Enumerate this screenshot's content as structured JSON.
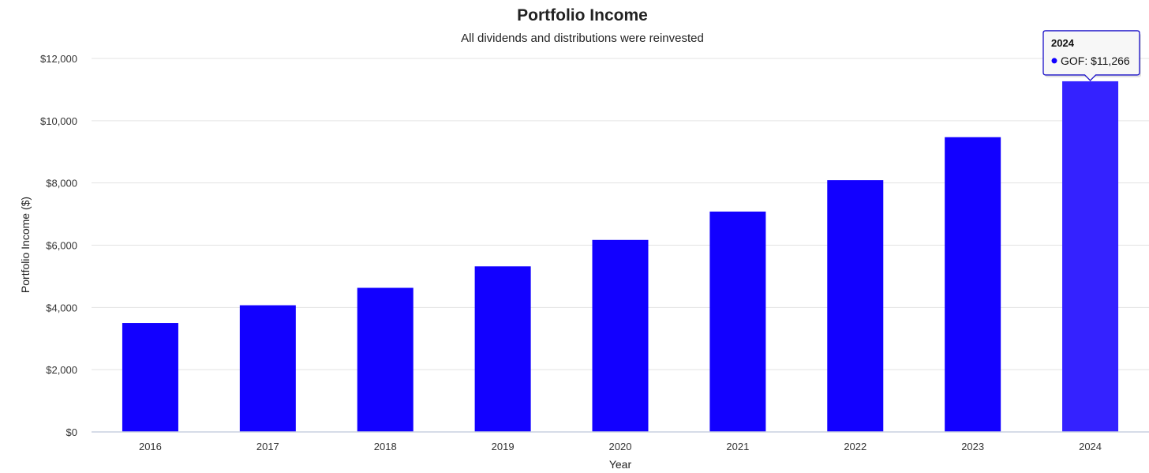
{
  "chart_data": {
    "type": "bar",
    "title": "Portfolio Income",
    "subtitle": "All dividends and distributions were reinvested",
    "xlabel": "Year",
    "ylabel": "Portfolio Income ($)",
    "categories": [
      "2016",
      "2017",
      "2018",
      "2019",
      "2020",
      "2021",
      "2022",
      "2023",
      "2024"
    ],
    "series": [
      {
        "name": "GOF",
        "values": [
          3500,
          4070,
          4630,
          5320,
          6170,
          7080,
          8090,
          9470,
          11266
        ]
      }
    ],
    "ylim": [
      0,
      12000
    ],
    "yticks": [
      0,
      2000,
      4000,
      6000,
      8000,
      10000,
      12000
    ],
    "ytick_labels": [
      "$0",
      "$2,000",
      "$4,000",
      "$6,000",
      "$8,000",
      "$10,000",
      "$12,000"
    ],
    "grid": true,
    "colors": {
      "bar": "#1200ff",
      "bar_highlight": "#3422ff",
      "tooltip_border": "#1a10c8"
    },
    "tooltip": {
      "header": "2024",
      "text": "GOF: $11,266",
      "category_index": 8
    }
  }
}
